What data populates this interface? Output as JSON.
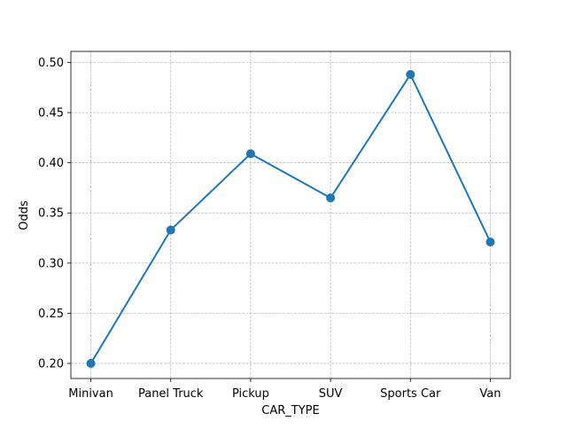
{
  "chart_data": {
    "type": "line",
    "title": "",
    "xlabel": "CAR_TYPE",
    "ylabel": "Odds",
    "categories": [
      "Minivan",
      "Panel Truck",
      "Pickup",
      "SUV",
      "Sports Car",
      "Van"
    ],
    "series": [
      {
        "values": [
          0.2,
          0.333,
          0.409,
          0.365,
          0.488,
          0.321
        ],
        "color": "#1f77b4",
        "marker": "circle"
      }
    ],
    "ylim": [
      0.185,
      0.511
    ],
    "yticks": [
      0.2,
      0.25,
      0.3,
      0.35,
      0.4,
      0.45,
      0.5
    ],
    "ytick_labels": [
      "0.20",
      "0.25",
      "0.30",
      "0.35",
      "0.40",
      "0.45",
      "0.50"
    ],
    "grid": true,
    "legend": "none"
  }
}
